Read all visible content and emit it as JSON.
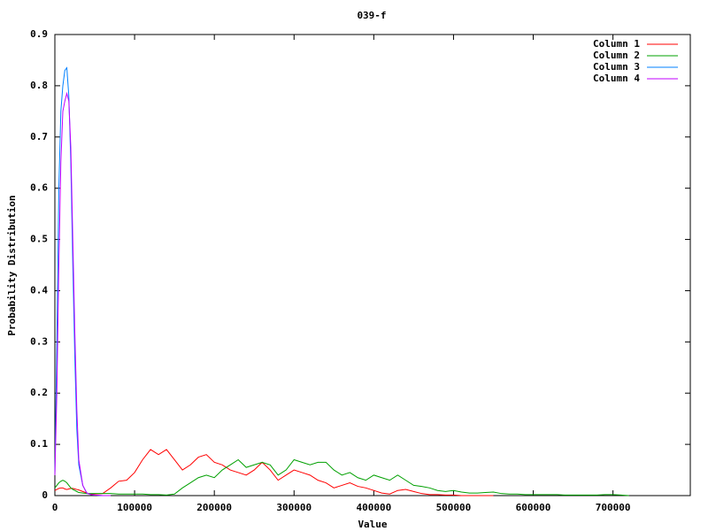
{
  "chart_data": {
    "type": "line",
    "title": "039-f",
    "xlabel": "Value",
    "ylabel": "Probability Distribution",
    "x": [
      0,
      2500,
      5000,
      7500,
      10000,
      12500,
      15000,
      17500,
      20000,
      22500,
      25000,
      27500,
      30000,
      35000,
      40000,
      45000,
      50000,
      60000,
      70000,
      80000,
      90000,
      100000,
      110000,
      120000,
      130000,
      140000,
      150000,
      160000,
      170000,
      180000,
      190000,
      200000,
      210000,
      220000,
      230000,
      240000,
      250000,
      260000,
      270000,
      280000,
      290000,
      300000,
      310000,
      320000,
      330000,
      340000,
      350000,
      360000,
      370000,
      380000,
      390000,
      400000,
      410000,
      420000,
      430000,
      440000,
      450000,
      460000,
      470000,
      480000,
      490000,
      500000,
      510000,
      520000,
      530000,
      540000,
      550000,
      560000,
      570000,
      580000,
      590000,
      600000,
      610000,
      620000,
      630000,
      640000,
      650000,
      660000,
      670000,
      680000,
      690000,
      700000,
      710000,
      720000
    ],
    "series": [
      {
        "name": "Column 1",
        "color": "#ff0000",
        "values": [
          0.01,
          0.012,
          0.014,
          0.015,
          0.015,
          0.013,
          0.012,
          0.013,
          0.014,
          0.014,
          0.013,
          0.012,
          0.011,
          0.008,
          0.005,
          0.003,
          0.003,
          0.004,
          0.015,
          0.028,
          0.03,
          0.045,
          0.07,
          0.09,
          0.08,
          0.09,
          0.07,
          0.05,
          0.06,
          0.075,
          0.08,
          0.065,
          0.06,
          0.05,
          0.045,
          0.04,
          0.05,
          0.065,
          0.05,
          0.03,
          0.04,
          0.05,
          0.045,
          0.04,
          0.03,
          0.025,
          0.015,
          0.02,
          0.025,
          0.018,
          0.015,
          0.01,
          0.005,
          0.003,
          0.01,
          0.012,
          0.008,
          0.004,
          0.002,
          0.002,
          0.001,
          0.001,
          0,
          0,
          0,
          0,
          0,
          null,
          null,
          null,
          null,
          null,
          null,
          null,
          null,
          null,
          null,
          null,
          null,
          null,
          null,
          null,
          null,
          null
        ]
      },
      {
        "name": "Column 2",
        "color": "#00a000",
        "values": [
          0.015,
          0.02,
          0.025,
          0.028,
          0.03,
          0.028,
          0.025,
          0.02,
          0.015,
          0.012,
          0.01,
          0.008,
          0.006,
          0.005,
          0.004,
          0.004,
          0.004,
          0.004,
          0.004,
          0.003,
          0.003,
          0.003,
          0.003,
          0.002,
          0.002,
          0.001,
          0.003,
          0.015,
          0.025,
          0.035,
          0.04,
          0.035,
          0.05,
          0.06,
          0.07,
          0.055,
          0.06,
          0.065,
          0.06,
          0.04,
          0.05,
          0.07,
          0.065,
          0.06,
          0.065,
          0.065,
          0.05,
          0.04,
          0.045,
          0.035,
          0.03,
          0.04,
          0.035,
          0.03,
          0.04,
          0.03,
          0.02,
          0.018,
          0.015,
          0.01,
          0.008,
          0.01,
          0.007,
          0.005,
          0.005,
          0.006,
          0.007,
          0.004,
          0.003,
          0.003,
          0.002,
          0.002,
          0.002,
          0.002,
          0.002,
          0.001,
          0.001,
          0.001,
          0.001,
          0.001,
          0.002,
          0.002,
          0.001,
          0
        ]
      },
      {
        "name": "Column 3",
        "color": "#0080ff",
        "values": [
          0.04,
          0.3,
          0.6,
          0.75,
          0.8,
          0.83,
          0.835,
          0.78,
          0.65,
          0.45,
          0.27,
          0.13,
          0.06,
          0.02,
          0.005,
          0.002,
          0.001,
          0,
          0,
          null,
          null,
          null,
          null,
          null,
          null,
          null,
          null,
          null,
          null,
          null,
          null,
          null,
          null,
          null,
          null,
          null,
          null,
          null,
          null,
          null,
          null,
          null,
          null,
          null,
          null,
          null,
          null,
          null,
          null,
          null,
          null,
          null,
          null,
          null,
          null,
          null,
          null,
          null,
          null,
          null,
          null,
          null,
          null,
          null,
          null,
          null,
          null,
          null,
          null,
          null,
          null,
          null,
          null,
          null,
          null,
          null,
          null,
          null,
          null,
          null,
          null,
          null,
          null,
          null
        ]
      },
      {
        "name": "Column 4",
        "color": "#c000ff",
        "values": [
          0.04,
          0.2,
          0.45,
          0.65,
          0.75,
          0.77,
          0.785,
          0.77,
          0.68,
          0.5,
          0.32,
          0.17,
          0.07,
          0.02,
          0.005,
          0.002,
          0.001,
          0,
          0,
          null,
          null,
          null,
          null,
          null,
          null,
          null,
          null,
          null,
          null,
          null,
          null,
          null,
          null,
          null,
          null,
          null,
          null,
          null,
          null,
          null,
          null,
          null,
          null,
          null,
          null,
          null,
          null,
          null,
          null,
          null,
          null,
          null,
          null,
          null,
          null,
          null,
          null,
          null,
          null,
          null,
          null,
          null,
          null,
          null,
          null,
          null,
          null,
          null,
          null,
          null,
          null,
          null,
          null,
          null,
          null,
          null,
          null,
          null,
          null,
          null,
          null,
          null,
          null,
          null
        ]
      }
    ],
    "xlim": [
      0,
      797000
    ],
    "ylim": [
      0,
      0.9
    ],
    "xticks": [
      0,
      100000,
      200000,
      300000,
      400000,
      500000,
      600000,
      700000
    ],
    "yticks": [
      0,
      0.1,
      0.2,
      0.3,
      0.4,
      0.5,
      0.6,
      0.7,
      0.8,
      0.9
    ],
    "grid": false,
    "legend": "top-right"
  }
}
